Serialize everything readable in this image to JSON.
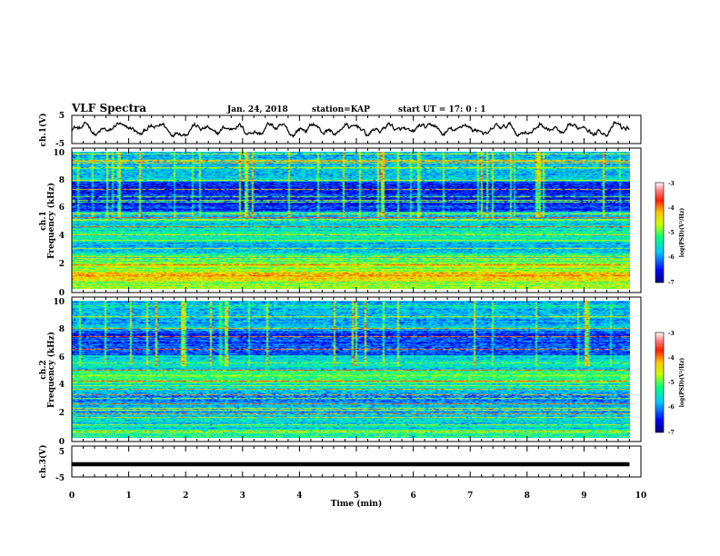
{
  "header": {
    "title": "VLF Spectra",
    "date": "Jan. 24, 2018",
    "station": "station=KAP",
    "start": "start UT =  17: 0  : 1"
  },
  "chart_data": [
    {
      "type": "line",
      "name": "ch1-waveform",
      "ylabel": "ch.1(V)",
      "xlim": [
        0,
        10
      ],
      "ylim": [
        -5,
        5
      ],
      "yticks": [
        "5",
        "-5"
      ],
      "description": "noisy oscillating trace around 0 V spanning roughly -2 to +2 V until ~9.8 min"
    },
    {
      "type": "heatmap",
      "name": "ch1-spectrogram",
      "ylabel": "Frequency (kHz)",
      "ylabel2": "ch.1",
      "xlim": [
        0,
        9.85
      ],
      "ylim": [
        0,
        10
      ],
      "yticks": [
        "0",
        "2",
        "4",
        "6",
        "8",
        "10"
      ],
      "bands": [
        {
          "from": 0.0,
          "to": 0.5,
          "level": 0.55
        },
        {
          "from": 0.5,
          "to": 1.2,
          "level": 0.68
        },
        {
          "from": 1.2,
          "to": 2.0,
          "level": 0.55
        },
        {
          "from": 2.0,
          "to": 2.6,
          "level": 0.42
        },
        {
          "from": 2.6,
          "to": 3.4,
          "level": 0.3
        },
        {
          "from": 3.4,
          "to": 4.2,
          "level": 0.4
        },
        {
          "from": 4.2,
          "to": 5.0,
          "level": 0.36
        },
        {
          "from": 5.0,
          "to": 5.6,
          "level": 0.34
        },
        {
          "from": 5.6,
          "to": 7.8,
          "level": 0.14
        },
        {
          "from": 7.8,
          "to": 10.0,
          "level": 0.3
        }
      ],
      "lines_khz": [
        0.3,
        0.9,
        1.8,
        2.4,
        3.0,
        3.6,
        4.0,
        4.6,
        5.2,
        5.5,
        6.5,
        7.3
      ]
    },
    {
      "type": "heatmap",
      "name": "ch2-spectrogram",
      "ylabel": "Frequency (kHz)",
      "ylabel2": "ch.2",
      "xlim": [
        0,
        9.85
      ],
      "ylim": [
        0,
        10
      ],
      "yticks": [
        "0",
        "2",
        "4",
        "6",
        "8",
        "10"
      ],
      "bands": [
        {
          "from": 0.0,
          "to": 0.5,
          "level": 0.42
        },
        {
          "from": 0.5,
          "to": 1.5,
          "level": 0.36
        },
        {
          "from": 1.5,
          "to": 2.5,
          "level": 0.3
        },
        {
          "from": 2.5,
          "to": 3.3,
          "level": 0.24
        },
        {
          "from": 3.3,
          "to": 4.0,
          "level": 0.34
        },
        {
          "from": 4.0,
          "to": 5.0,
          "level": 0.48
        },
        {
          "from": 5.0,
          "to": 6.0,
          "level": 0.34
        },
        {
          "from": 6.0,
          "to": 7.8,
          "level": 0.17
        },
        {
          "from": 7.8,
          "to": 10.0,
          "level": 0.3
        }
      ],
      "lines_khz": [
        0.4,
        1.0,
        1.8,
        2.5,
        3.2,
        3.6,
        4.2,
        4.6,
        5.0,
        6.5,
        7.4
      ]
    },
    {
      "type": "line",
      "name": "ch3-waveform",
      "ylabel": "ch.3(V)",
      "xlim": [
        0,
        10
      ],
      "ylim": [
        -5,
        5
      ],
      "yticks": [
        "5",
        "-5"
      ],
      "description": "thick flat trace at about 0 V until ~9.8 min"
    }
  ],
  "xaxis": {
    "label": "Time (min)",
    "ticks": [
      "0",
      "1",
      "2",
      "3",
      "4",
      "5",
      "6",
      "7",
      "8",
      "9",
      "10"
    ]
  },
  "colorbar": {
    "label": "log(PSD)(V²/Hz)",
    "ticks": [
      "-3",
      "-4",
      "-5",
      "-6",
      "-7"
    ],
    "range": [
      -7,
      -3
    ]
  }
}
